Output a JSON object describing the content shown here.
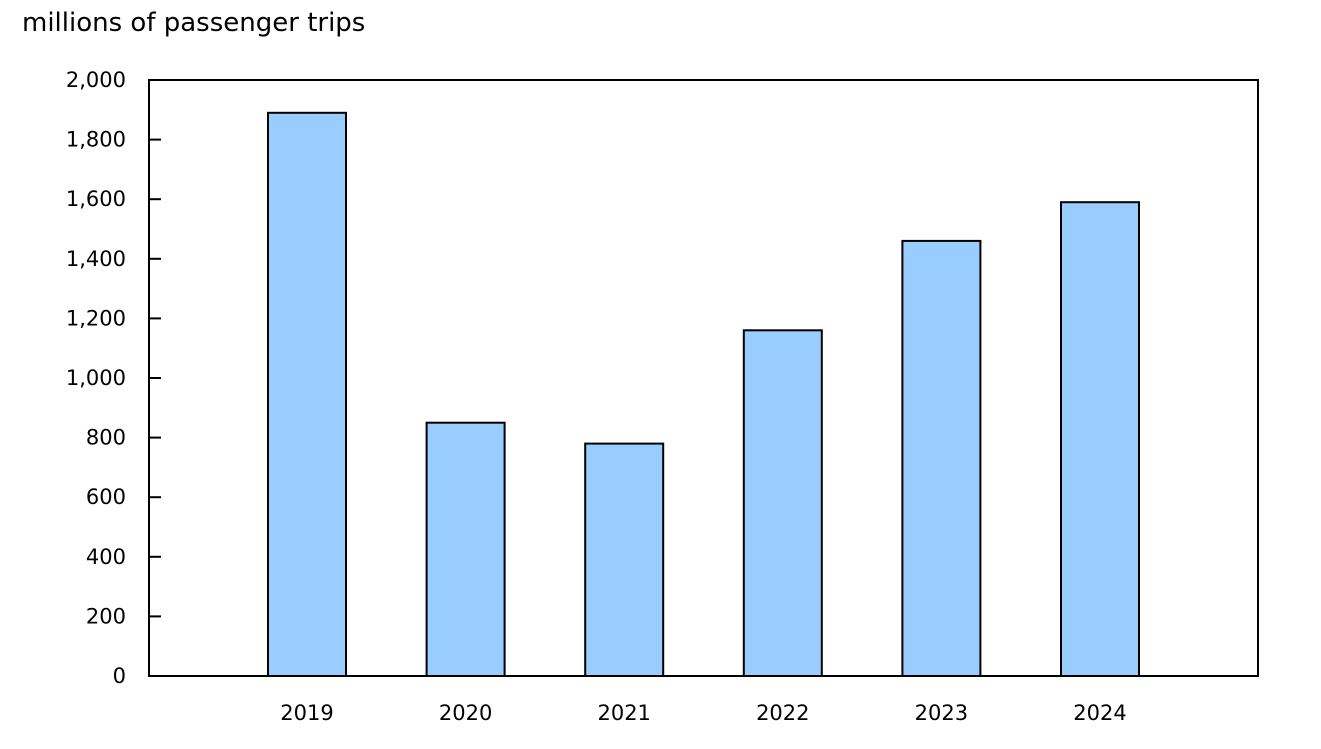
{
  "chart_data": {
    "type": "bar",
    "unit_label": "millions of passenger trips",
    "categories": [
      "2019",
      "2020",
      "2021",
      "2022",
      "2023",
      "2024"
    ],
    "values": [
      1890,
      850,
      780,
      1160,
      1460,
      1590
    ],
    "ylim": [
      0,
      2000
    ],
    "yticks": [
      0,
      200,
      400,
      600,
      800,
      1000,
      1200,
      1400,
      1600,
      1800,
      2000
    ],
    "ytick_labels": [
      "0",
      "200",
      "400",
      "600",
      "800",
      "1,000",
      "1,200",
      "1,400",
      "1,600",
      "1,800",
      "2,000"
    ],
    "grid": false,
    "legend": "none",
    "colors": {
      "bar_fill": "#99ccff",
      "bar_stroke": "#000000",
      "axis": "#000000"
    }
  }
}
